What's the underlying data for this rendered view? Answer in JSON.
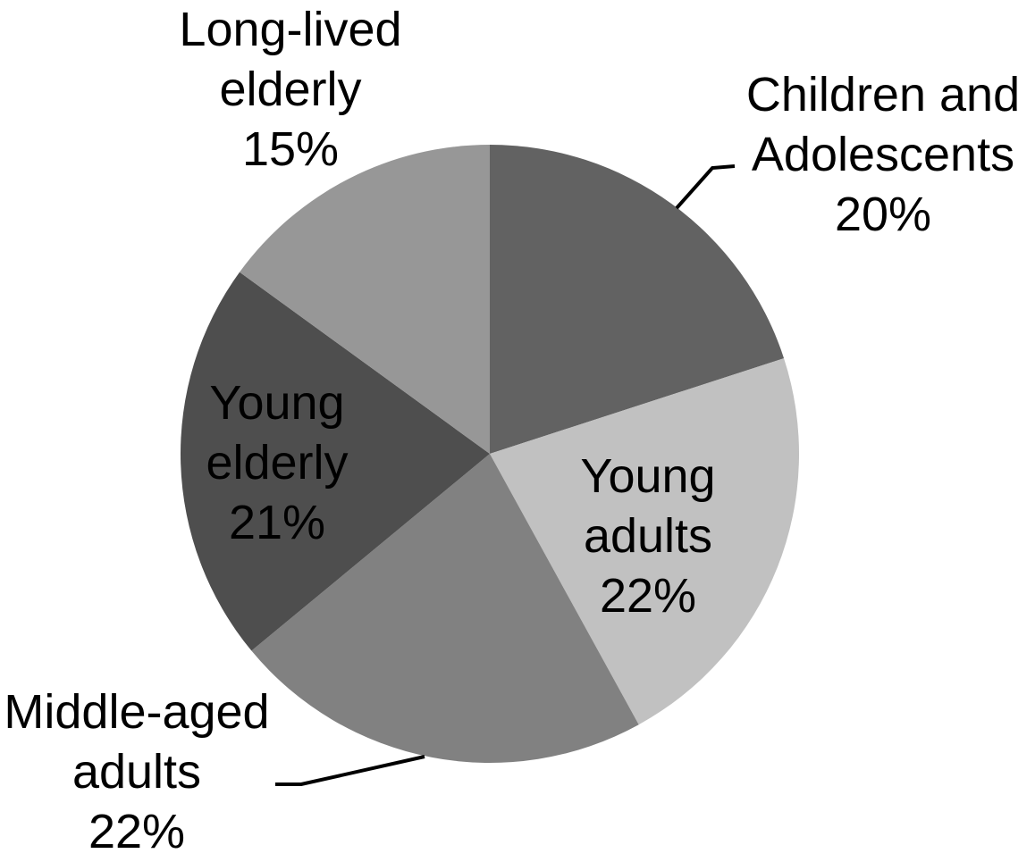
{
  "chart_data": {
    "type": "pie",
    "title": "",
    "start_angle_deg": 0,
    "direction": "clockwise",
    "total": 100,
    "background": "#ffffff",
    "label_text_color": "#000000",
    "leader_line_color": "#000000",
    "slices": [
      {
        "label": "Children and Adolescents",
        "value": 20,
        "pct_label": "20%",
        "color": "#626262",
        "label_position": "outside",
        "has_leader_line": true,
        "lines": [
          "Children and",
          "Adolescents",
          "20%"
        ]
      },
      {
        "label": "Young adults",
        "value": 22,
        "pct_label": "22%",
        "color": "#c1c1c1",
        "label_position": "inside",
        "has_leader_line": false,
        "lines": [
          "Young",
          "adults",
          "22%"
        ]
      },
      {
        "label": "Middle-aged adults",
        "value": 22,
        "pct_label": "22%",
        "color": "#818181",
        "label_position": "outside",
        "has_leader_line": true,
        "lines": [
          "Middle-aged",
          "adults",
          "22%"
        ]
      },
      {
        "label": "Young elderly",
        "value": 21,
        "pct_label": "21%",
        "color": "#4e4e4e",
        "label_position": "inside",
        "has_leader_line": false,
        "lines": [
          "Young",
          "elderly",
          "21%"
        ]
      },
      {
        "label": "Long-lived elderly",
        "value": 15,
        "pct_label": "15%",
        "color": "#979797",
        "label_position": "outside",
        "has_leader_line": false,
        "lines": [
          "Long-lived",
          "elderly",
          "15%"
        ]
      }
    ]
  }
}
